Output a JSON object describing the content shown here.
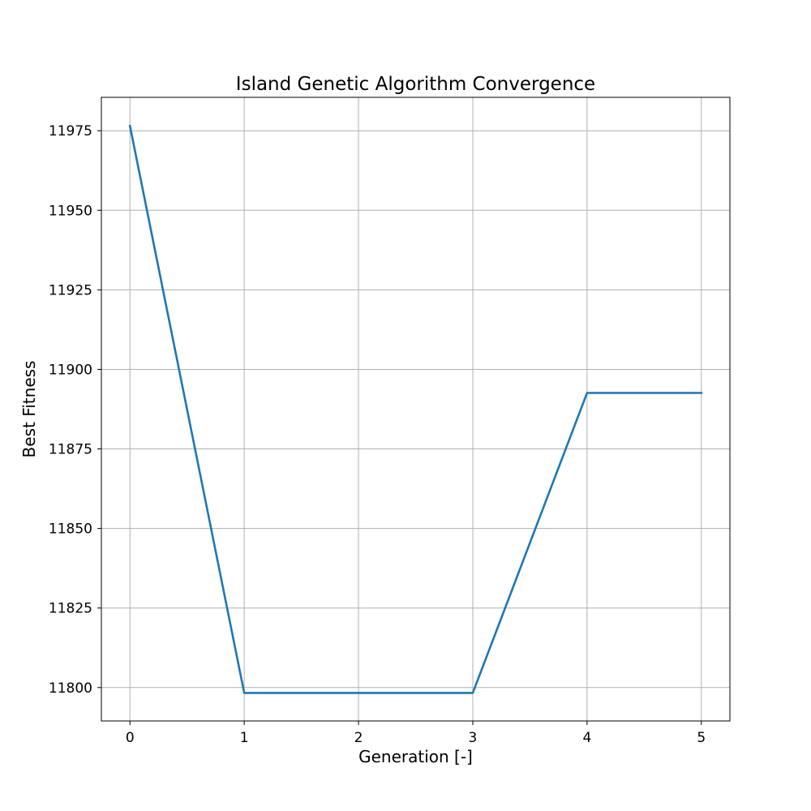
{
  "chart_data": {
    "type": "line",
    "title": "Island Genetic Algorithm Convergence",
    "xlabel": "Generation [-]",
    "ylabel": "Best Fitness",
    "x": [
      0,
      1,
      2,
      3,
      4,
      5
    ],
    "series": [
      {
        "values": [
          11976.5,
          11798.3,
          11798.3,
          11798.3,
          11892.6,
          11892.6
        ],
        "color": "#1f77b4"
      }
    ],
    "xlim": [
      -0.25,
      5.25
    ],
    "ylim": [
      11789.5,
      11985.5
    ],
    "xticks": [
      0,
      1,
      2,
      3,
      4,
      5
    ],
    "yticks": [
      11800,
      11825,
      11850,
      11875,
      11900,
      11925,
      11950,
      11975
    ],
    "grid": true,
    "legend": "none"
  }
}
